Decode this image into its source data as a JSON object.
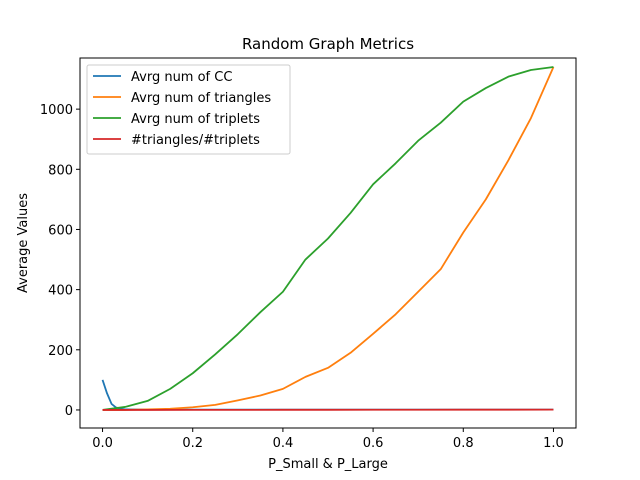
{
  "chart_data": {
    "type": "line",
    "title": "Random Graph Metrics",
    "xlabel": "P_Small & P_Large",
    "ylabel": "Average Values",
    "xlim": [
      -0.05,
      1.05
    ],
    "ylim": [
      -60,
      1170
    ],
    "x_ticks": [
      0.0,
      0.2,
      0.4,
      0.6,
      0.8,
      1.0
    ],
    "x_tick_labels": [
      "0.0",
      "0.2",
      "0.4",
      "0.6",
      "0.8",
      "1.0"
    ],
    "y_ticks": [
      0,
      200,
      400,
      600,
      800,
      1000
    ],
    "y_tick_labels": [
      "0",
      "200",
      "400",
      "600",
      "800",
      "1000"
    ],
    "grid": false,
    "legend_position": "upper-left",
    "series": [
      {
        "name": "Avrg num of CC",
        "color": "#1f77b4",
        "x": [
          0.0,
          0.01,
          0.02,
          0.03,
          0.04,
          0.05,
          0.1,
          0.2,
          0.4,
          0.6,
          0.8,
          1.0
        ],
        "y": [
          100,
          55,
          20,
          8,
          4,
          2,
          1,
          1,
          1,
          1,
          1,
          1
        ]
      },
      {
        "name": "Avrg num of triangles",
        "color": "#ff7f0e",
        "x": [
          0.0,
          0.05,
          0.1,
          0.15,
          0.2,
          0.25,
          0.3,
          0.35,
          0.4,
          0.45,
          0.5,
          0.55,
          0.6,
          0.65,
          0.7,
          0.75,
          0.8,
          0.85,
          0.9,
          0.95,
          1.0
        ],
        "y": [
          0,
          0,
          2,
          4,
          9,
          17,
          32,
          48,
          70,
          110,
          140,
          190,
          253,
          318,
          393,
          468,
          590,
          700,
          830,
          970,
          1140
        ]
      },
      {
        "name": "Avrg num of triplets",
        "color": "#2ca02c",
        "x": [
          0.0,
          0.05,
          0.1,
          0.15,
          0.2,
          0.25,
          0.3,
          0.35,
          0.4,
          0.45,
          0.5,
          0.55,
          0.6,
          0.65,
          0.7,
          0.75,
          0.8,
          0.85,
          0.9,
          0.95,
          1.0
        ],
        "y": [
          0,
          10,
          30,
          70,
          122,
          185,
          252,
          325,
          393,
          500,
          570,
          655,
          750,
          820,
          895,
          955,
          1025,
          1070,
          1108,
          1130,
          1140
        ]
      },
      {
        "name": "#triangles/#triplets",
        "color": "#d62728",
        "x": [
          0.0,
          0.1,
          0.2,
          0.3,
          0.4,
          0.5,
          0.6,
          0.7,
          0.8,
          0.9,
          1.0
        ],
        "y": [
          0,
          0.1,
          0.2,
          0.3,
          0.4,
          0.5,
          0.6,
          0.7,
          0.8,
          0.9,
          1.0
        ]
      }
    ]
  }
}
